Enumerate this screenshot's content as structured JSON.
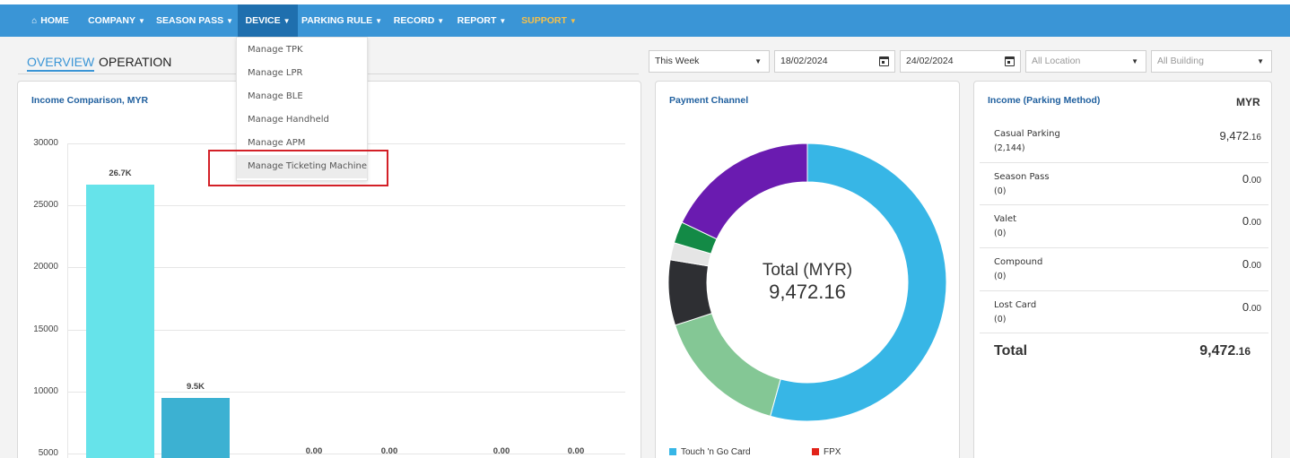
{
  "navbar": {
    "items": [
      {
        "label": "HOME",
        "icon": "home-icon"
      },
      {
        "label": "COMPANY"
      },
      {
        "label": "SEASON PASS"
      },
      {
        "label": "DEVICE"
      },
      {
        "label": "PARKING RULE"
      },
      {
        "label": "RECORD"
      },
      {
        "label": "REPORT"
      },
      {
        "label": "SUPPORT"
      }
    ],
    "active": "DEVICE",
    "support_color": "#f6c04a",
    "bar_color": "#3a95d6"
  },
  "device_menu": {
    "items": [
      "Manage TPK",
      "Manage LPR",
      "Manage BLE",
      "Manage Handheld",
      "Manage APM",
      "Manage Ticketing Machine"
    ],
    "highlighted": "Manage Ticketing Machine"
  },
  "tabs": {
    "overview": "OVERVIEW",
    "operation": "OPERATION"
  },
  "filters": {
    "period": "This Week",
    "date_from": "18/02/2024",
    "date_to": "24/02/2024",
    "location_placeholder": "All Location",
    "building_placeholder": "All Building"
  },
  "income_comparison": {
    "title": "Income Comparison, MYR"
  },
  "chart_data": {
    "type": "bar",
    "title": "Income Comparison, MYR",
    "ylim": [
      0,
      30000
    ],
    "yticks": [
      "30000",
      "25000",
      "20000",
      "15000",
      "10000",
      "5000"
    ],
    "grid": true,
    "values": [
      26700,
      9500,
      0,
      0,
      0,
      0
    ],
    "data_labels": [
      "26.7K",
      "9.5K",
      "0.00",
      "0.00",
      "0.00",
      "0.00"
    ],
    "bar_colors": [
      "#66e3ea",
      "#3cb1d2",
      "#3cb1d2",
      "#3cb1d2",
      "#3cb1d2",
      "#3cb1d2"
    ]
  },
  "payment_channel": {
    "title": "Payment Channel",
    "total_label": "Total (MYR)",
    "total_value": "9,472.16",
    "segments": [
      {
        "fraction": 0.543,
        "color": "#37b6e6"
      },
      {
        "fraction": 0.157,
        "color": "#84c795"
      },
      {
        "fraction": 0.076,
        "color": "#2e2f33"
      },
      {
        "fraction": 0.02,
        "color": "#e5e5e5"
      },
      {
        "fraction": 0.025,
        "color": "#138a46"
      },
      {
        "fraction": 0.179,
        "color": "#6a1bb0"
      }
    ],
    "legend": [
      {
        "label": "Touch 'n Go Card",
        "color": "#37b6e6"
      },
      {
        "label": "FPX",
        "color": "#e2231a"
      }
    ]
  },
  "income_method": {
    "title": "Income (Parking Method)",
    "currency": "MYR",
    "rows": [
      {
        "name": "Casual Parking",
        "count": "(2,144)",
        "amount_main": "9,472",
        "amount_dec": ".16"
      },
      {
        "name": "Season Pass",
        "count": "(0)",
        "amount_main": "0",
        "amount_dec": ".00"
      },
      {
        "name": "Valet",
        "count": "(0)",
        "amount_main": "0",
        "amount_dec": ".00"
      },
      {
        "name": "Compound",
        "count": "(0)",
        "amount_main": "0",
        "amount_dec": ".00"
      },
      {
        "name": "Lost Card",
        "count": "(0)",
        "amount_main": "0",
        "amount_dec": ".00"
      }
    ],
    "total_label": "Total",
    "total_main": "9,472",
    "total_dec": ".16"
  }
}
